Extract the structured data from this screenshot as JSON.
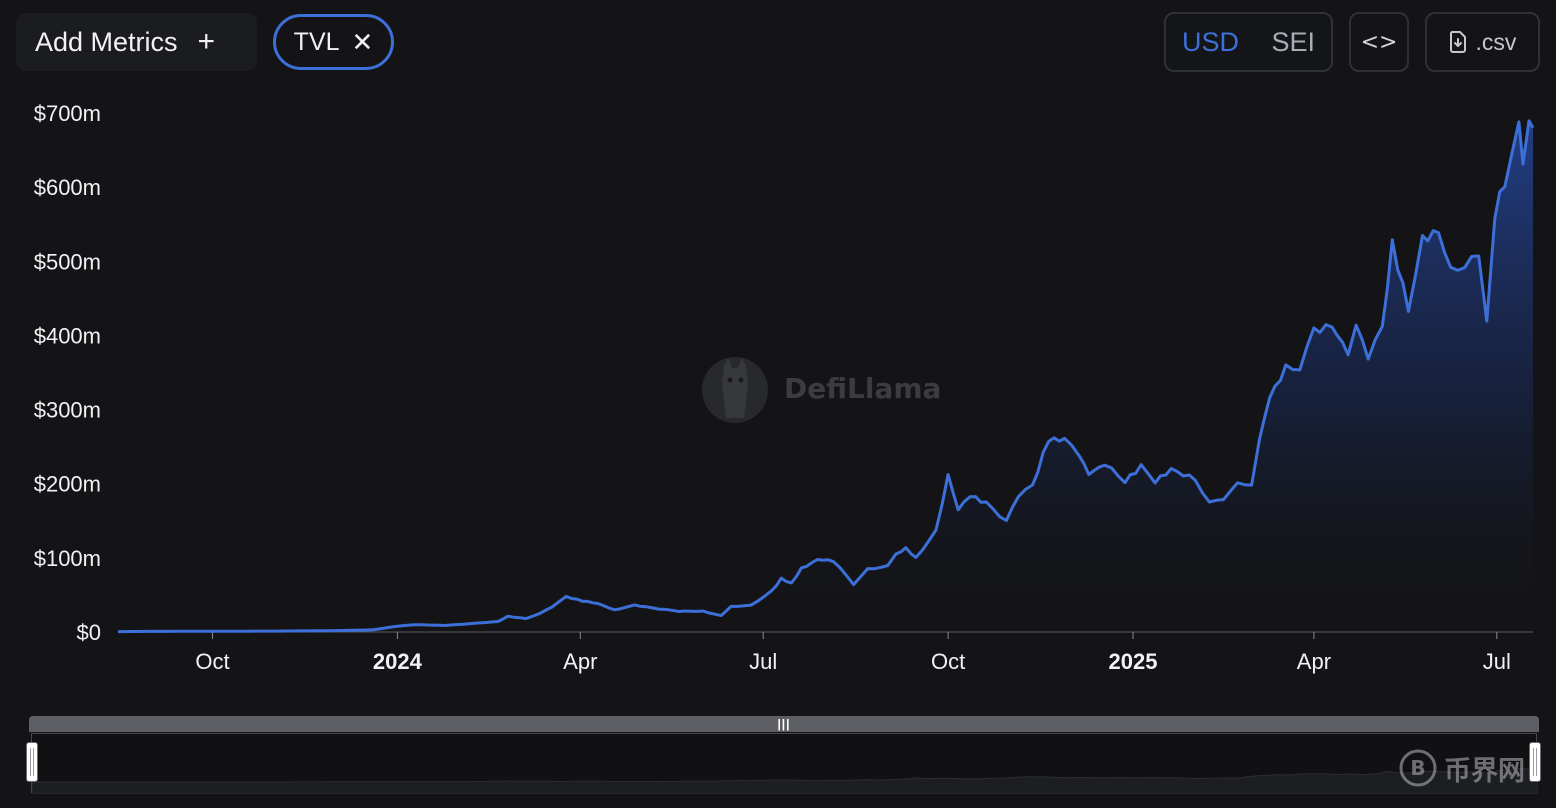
{
  "toolbar": {
    "add_metrics_label": "Add Metrics",
    "add_metrics_icon": "+",
    "metric_chip_label": "TVL",
    "metric_chip_close": "✕",
    "currency_options": [
      "USD",
      "SEI"
    ],
    "currency_selected": "USD",
    "embed_icon": "<>",
    "csv_label": ".csv"
  },
  "watermark": {
    "brand": "DefiLlama"
  },
  "footer_watermark": {
    "brand": "币界网"
  },
  "colors": {
    "background": "#141416",
    "line": "#3d6fd9",
    "accent": "#3d6fd9",
    "axis_text": "#f2f2f4"
  },
  "chart_data": {
    "type": "area",
    "series": [
      {
        "unit": "USD",
        "points": [
          [
            "2023-08-15",
            0.5
          ],
          [
            "2023-09-01",
            0.8
          ],
          [
            "2023-10-01",
            1.0
          ],
          [
            "2023-11-01",
            1.2
          ],
          [
            "2023-12-01",
            1.8
          ],
          [
            "2023-12-20",
            3.0
          ],
          [
            "2024-01-01",
            8.0
          ],
          [
            "2024-01-10",
            10.0
          ],
          [
            "2024-01-25",
            9.0
          ],
          [
            "2024-02-10",
            12.0
          ],
          [
            "2024-02-20",
            14.0
          ],
          [
            "2024-02-25",
            21.0
          ],
          [
            "2024-03-05",
            18.0
          ],
          [
            "2024-03-12",
            25.0
          ],
          [
            "2024-03-18",
            34.0
          ],
          [
            "2024-03-25",
            48.0
          ],
          [
            "2024-04-02",
            42.0
          ],
          [
            "2024-04-10",
            38.0
          ],
          [
            "2024-04-18",
            30.0
          ],
          [
            "2024-04-28",
            36.0
          ],
          [
            "2024-05-10",
            31.0
          ],
          [
            "2024-05-20",
            28.0
          ],
          [
            "2024-06-01",
            28.0
          ],
          [
            "2024-06-10",
            22.0
          ],
          [
            "2024-06-15",
            34.0
          ],
          [
            "2024-06-25",
            36.0
          ],
          [
            "2024-07-05",
            55.0
          ],
          [
            "2024-07-10",
            72.0
          ],
          [
            "2024-07-15",
            65.0
          ],
          [
            "2024-07-20",
            86.0
          ],
          [
            "2024-07-28",
            98.0
          ],
          [
            "2024-08-05",
            95.0
          ],
          [
            "2024-08-15",
            65.0
          ],
          [
            "2024-08-22",
            85.0
          ],
          [
            "2024-09-01",
            88.0
          ],
          [
            "2024-09-05",
            105.0
          ],
          [
            "2024-09-10",
            112.0
          ],
          [
            "2024-09-15",
            100.0
          ],
          [
            "2024-09-25",
            135.0
          ],
          [
            "2024-10-01",
            210.0
          ],
          [
            "2024-10-06",
            165.0
          ],
          [
            "2024-10-12",
            185.0
          ],
          [
            "2024-10-20",
            175.0
          ],
          [
            "2024-10-30",
            150.0
          ],
          [
            "2024-11-05",
            185.0
          ],
          [
            "2024-11-12",
            195.0
          ],
          [
            "2024-11-20",
            260.0
          ],
          [
            "2024-11-28",
            262.0
          ],
          [
            "2024-12-05",
            240.0
          ],
          [
            "2024-12-10",
            215.0
          ],
          [
            "2024-12-18",
            225.0
          ],
          [
            "2024-12-28",
            205.0
          ],
          [
            "2025-01-05",
            222.0
          ],
          [
            "2025-01-12",
            205.0
          ],
          [
            "2025-01-20",
            218.0
          ],
          [
            "2025-02-01",
            205.0
          ],
          [
            "2025-02-08",
            175.0
          ],
          [
            "2025-02-15",
            180.0
          ],
          [
            "2025-02-22",
            198.0
          ],
          [
            "2025-03-01",
            202.0
          ],
          [
            "2025-03-05",
            260.0
          ],
          [
            "2025-03-10",
            320.0
          ],
          [
            "2025-03-18",
            355.0
          ],
          [
            "2025-03-25",
            360.0
          ],
          [
            "2025-04-01",
            405.0
          ],
          [
            "2025-04-10",
            410.0
          ],
          [
            "2025-04-18",
            380.0
          ],
          [
            "2025-04-22",
            410.0
          ],
          [
            "2025-04-28",
            370.0
          ],
          [
            "2025-05-05",
            408.0
          ],
          [
            "2025-05-10",
            520.0
          ],
          [
            "2025-05-18",
            440.0
          ],
          [
            "2025-05-25",
            525.0
          ],
          [
            "2025-06-02",
            545.0
          ],
          [
            "2025-06-08",
            490.0
          ],
          [
            "2025-06-15",
            492.0
          ],
          [
            "2025-06-22",
            505.0
          ],
          [
            "2025-06-26",
            425.0
          ],
          [
            "2025-06-30",
            560.0
          ],
          [
            "2025-07-05",
            612.0
          ],
          [
            "2025-07-12",
            675.0
          ],
          [
            "2025-07-14",
            640.0
          ],
          [
            "2025-07-17",
            685.0
          ],
          [
            "2025-07-19",
            680.0
          ]
        ]
      }
    ],
    "y_ticks": [
      "$0",
      "$100m",
      "$200m",
      "$300m",
      "$400m",
      "$500m",
      "$600m",
      "$700m"
    ],
    "ylim": [
      0,
      700
    ],
    "x_ticks": [
      {
        "label": "Oct",
        "date": "2023-10-01",
        "bold": false
      },
      {
        "label": "2024",
        "date": "2024-01-01",
        "bold": true
      },
      {
        "label": "Apr",
        "date": "2024-04-01",
        "bold": false
      },
      {
        "label": "Jul",
        "date": "2024-07-01",
        "bold": false
      },
      {
        "label": "Oct",
        "date": "2024-10-01",
        "bold": false
      },
      {
        "label": "2025",
        "date": "2025-01-01",
        "bold": true
      },
      {
        "label": "Apr",
        "date": "2025-04-01",
        "bold": false
      },
      {
        "label": "Jul",
        "date": "2025-07-01",
        "bold": false
      }
    ],
    "xlim": [
      "2023-08-15",
      "2025-07-19"
    ]
  }
}
